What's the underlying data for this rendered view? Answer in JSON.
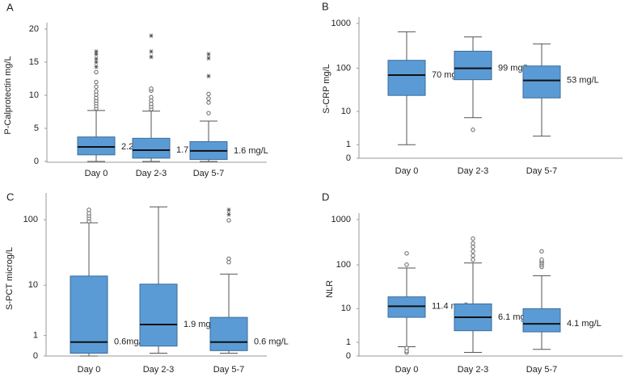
{
  "chart_data": [
    {
      "type": "box",
      "title": "A",
      "y_label": "P-Calprotectin mg/L",
      "yscale": "linear",
      "categories": [
        "Day 0",
        "Day 2-3",
        "Day 5-7"
      ],
      "whisker_low": [
        0,
        0,
        0
      ],
      "q1": [
        1.0,
        0.5,
        0.3
      ],
      "median": [
        2.2,
        1.7,
        1.6
      ],
      "q3": [
        3.7,
        3.5,
        3.0
      ],
      "whisker_high": [
        7.7,
        7.6,
        6.1
      ],
      "median_labels": [
        "2.2 mg/L",
        "1.7 mg/L",
        "1.6 mg/L"
      ],
      "outliers": [
        [
          8.0,
          8.4,
          8.8,
          9.2,
          9.6,
          10.1,
          10.6,
          11.3,
          12.0,
          13.5
        ],
        [
          7.9,
          8.3,
          8.7,
          9.2,
          9.7,
          10.7,
          11.0
        ],
        [
          7.3,
          8.9,
          9.5,
          10.2
        ]
      ],
      "extremes": [
        [
          14.3,
          15.0,
          15.5,
          16.2,
          16.6
        ],
        [
          15.8,
          16.6,
          19.0
        ],
        [
          12.9,
          15.6,
          16.2
        ]
      ],
      "color": "#5b9bd5",
      "ylim": [
        0,
        20
      ],
      "yticks": [
        0,
        5,
        10,
        15,
        20
      ]
    },
    {
      "type": "box",
      "title": "B",
      "y_label": "S-CRP mg/L",
      "yscale": "log",
      "categories": [
        "Day 0",
        "Day 2-3",
        "Day 5-7"
      ],
      "whisker_low": [
        1.0,
        7,
        2.1
      ],
      "q1": [
        24,
        55,
        21
      ],
      "median": [
        70,
        99,
        53
      ],
      "q3": [
        150,
        240,
        112
      ],
      "whisker_high": [
        650,
        500,
        350
      ],
      "median_labels": [
        "70 mg/L",
        "99 mg/L",
        "53 mg/L"
      ],
      "outliers": [
        [],
        [
          3.3
        ],
        []
      ],
      "extremes": [
        [],
        [],
        []
      ],
      "color": "#5b9bd5",
      "ylim": [
        0,
        1000
      ],
      "yticks": [
        0,
        1,
        10,
        100,
        1000
      ]
    },
    {
      "type": "box",
      "title": "C",
      "y_label": "S-PCT microg/L",
      "yscale": "log",
      "categories": [
        "Day 0",
        "Day 2-3",
        "Day 5-7"
      ],
      "whisker_low": [
        0,
        0.1,
        0.1
      ],
      "q1": [
        0.1,
        0.4,
        0.2
      ],
      "median": [
        0.6,
        1.9,
        0.6
      ],
      "q3": [
        14,
        10.4,
        2.7
      ],
      "whisker_high": [
        90,
        155,
        15
      ],
      "median_labels": [
        "0.6mg/L",
        "1.9 mg/L",
        "0.6 mg/L"
      ],
      "outliers": [
        [
          95,
          105,
          115,
          125,
          140
        ],
        [],
        [
          23,
          26,
          98
        ]
      ],
      "extremes": [
        [],
        [],
        [
          120,
          140
        ]
      ],
      "color": "#5b9bd5",
      "ylim": [
        0,
        200
      ],
      "yticks": [
        0,
        1,
        10,
        100
      ]
    },
    {
      "type": "box",
      "title": "D",
      "y_label": "NLR",
      "yscale": "log",
      "categories": [
        "Day 0",
        "Day 2-3",
        "Day 5-7"
      ],
      "whisker_low": [
        0.6,
        0.2,
        0.4
      ],
      "q1": [
        6.1,
        2.6,
        2.4
      ],
      "median": [
        11.4,
        6.1,
        4.1
      ],
      "q3": [
        19,
        13,
        10
      ],
      "whisker_high": [
        85,
        110,
        57
      ],
      "median_labels": [
        "11.4 mg/L",
        "6.1 mg/L",
        "4.1 mg/L"
      ],
      "outliers": [
        [
          0.2,
          0.3,
          0.5,
          101,
          180
        ],
        [
          130,
          160,
          200,
          250,
          300,
          380
        ],
        [
          90,
          100,
          110,
          120,
          130,
          200
        ]
      ],
      "extremes": [
        [],
        [],
        []
      ],
      "color": "#5b9bd5",
      "ylim": [
        0,
        1000
      ],
      "yticks": [
        0,
        1,
        10,
        100,
        1000
      ]
    }
  ]
}
